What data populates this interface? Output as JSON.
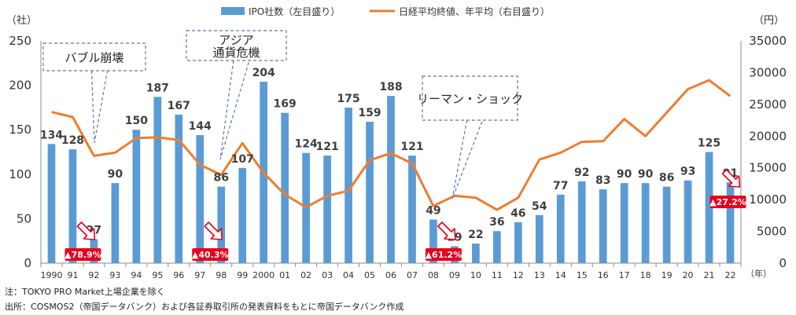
{
  "chart_data": {
    "type": "bar+line",
    "legend": {
      "position": "top-center",
      "bar_label": "IPO社数（左目盛り）",
      "line_label": "日経平均終値、年平均（右目盛り）"
    },
    "left_axis": {
      "unit": "（社）",
      "range": [
        0,
        250
      ],
      "ticks": [
        0,
        50,
        100,
        150,
        200,
        250
      ]
    },
    "right_axis": {
      "unit": "（円）",
      "range": [
        0,
        35000
      ],
      "ticks": [
        0,
        5000,
        10000,
        15000,
        20000,
        25000,
        30000,
        35000
      ]
    },
    "x_unit": "（年）",
    "categories": [
      "1990",
      "91",
      "92",
      "93",
      "94",
      "95",
      "96",
      "97",
      "98",
      "99",
      "2000",
      "01",
      "02",
      "03",
      "04",
      "05",
      "06",
      "07",
      "08",
      "09",
      "10",
      "11",
      "12",
      "13",
      "14",
      "15",
      "16",
      "17",
      "18",
      "19",
      "20",
      "21",
      "22"
    ],
    "bar_labels": [
      "134",
      "128",
      "27",
      "90",
      "150",
      "187",
      "167",
      "144",
      "86",
      "107",
      "204",
      "169",
      "124",
      "121",
      "175",
      "159",
      "188",
      "121",
      "49",
      "19",
      "22",
      "36",
      "46",
      "54",
      "77",
      "92",
      "83",
      "90",
      "90",
      "86",
      "93",
      "125",
      "91"
    ],
    "series": [
      {
        "name": "IPO社数（左目盛り）",
        "axis": "left",
        "color": "#5b9bd5",
        "values": [
          134,
          128,
          27,
          90,
          150,
          187,
          167,
          144,
          86,
          107,
          204,
          169,
          124,
          121,
          175,
          159,
          188,
          121,
          49,
          19,
          22,
          36,
          46,
          54,
          77,
          92,
          83,
          90,
          90,
          86,
          93,
          125,
          91
        ]
      },
      {
        "name": "日経平均終値、年平均（右目盛り）",
        "axis": "right",
        "color": "#ed7d31",
        "values": [
          23800,
          23000,
          16900,
          17400,
          19700,
          19800,
          19400,
          15500,
          13900,
          18900,
          14200,
          10800,
          8800,
          10600,
          11400,
          16200,
          17300,
          15700,
          9000,
          10600,
          10300,
          8400,
          10300,
          16300,
          17400,
          19100,
          19200,
          22700,
          20000,
          23700,
          27400,
          28800,
          26300
        ]
      }
    ],
    "callouts": [
      {
        "text": "バブル崩壊",
        "target_index": 2
      },
      {
        "text": "アジア\n通貨危機",
        "target_index": 8
      },
      {
        "text": "リーマン・ショック",
        "target_index": 19
      }
    ],
    "change_badges": [
      {
        "text": "▲78.9%",
        "index": 2
      },
      {
        "text": "▲40.3%",
        "index": 8
      },
      {
        "text": "▲61.2%",
        "index": 19
      },
      {
        "text": "▲27.2%",
        "index": 32
      }
    ],
    "badge_color": "#e8001c"
  },
  "notes": {
    "note1": "注：TOKYO PRO Market上場企業を除く",
    "note2": "出所：COSMOS2（帝国データバンク）および各証券取引所の発表資料をもとに帝国データバンク作成"
  }
}
